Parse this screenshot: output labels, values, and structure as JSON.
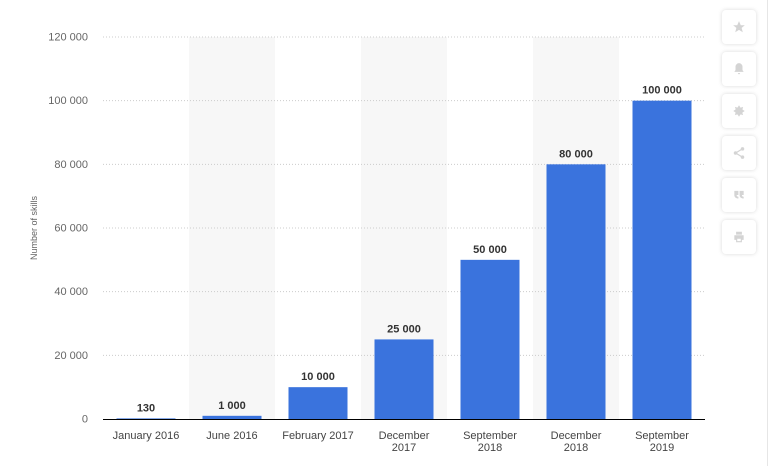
{
  "chart_data": {
    "type": "bar",
    "categories": [
      "January 2016",
      "June 2016",
      "February 2017",
      "December 2017",
      "September 2018",
      "December 2018",
      "September 2019"
    ],
    "category_lines": [
      [
        "January 2016"
      ],
      [
        "June 2016"
      ],
      [
        "February 2017"
      ],
      [
        "December",
        "2017"
      ],
      [
        "September",
        "2018"
      ],
      [
        "December",
        "2018"
      ],
      [
        "September",
        "2019"
      ]
    ],
    "values": [
      130,
      1000,
      10000,
      25000,
      50000,
      80000,
      100000
    ],
    "value_labels": [
      "130",
      "1 000",
      "10 000",
      "25 000",
      "50 000",
      "80 000",
      "100 000"
    ],
    "ylabel": "Number of skills",
    "ylim": [
      0,
      120000
    ],
    "yticks": [
      0,
      20000,
      40000,
      60000,
      80000,
      100000,
      120000
    ],
    "ytick_labels": [
      "0",
      "20 000",
      "40 000",
      "60 000",
      "80 000",
      "100 000",
      "120 000"
    ],
    "bar_color": "#3a73dd",
    "alt_band_color": "#f7f7f7",
    "grid": true
  },
  "toolbar": {
    "icons": [
      "star-icon",
      "bell-icon",
      "gear-icon",
      "share-icon",
      "quote-icon",
      "print-icon"
    ],
    "icon_color": "#d4d4d4"
  }
}
